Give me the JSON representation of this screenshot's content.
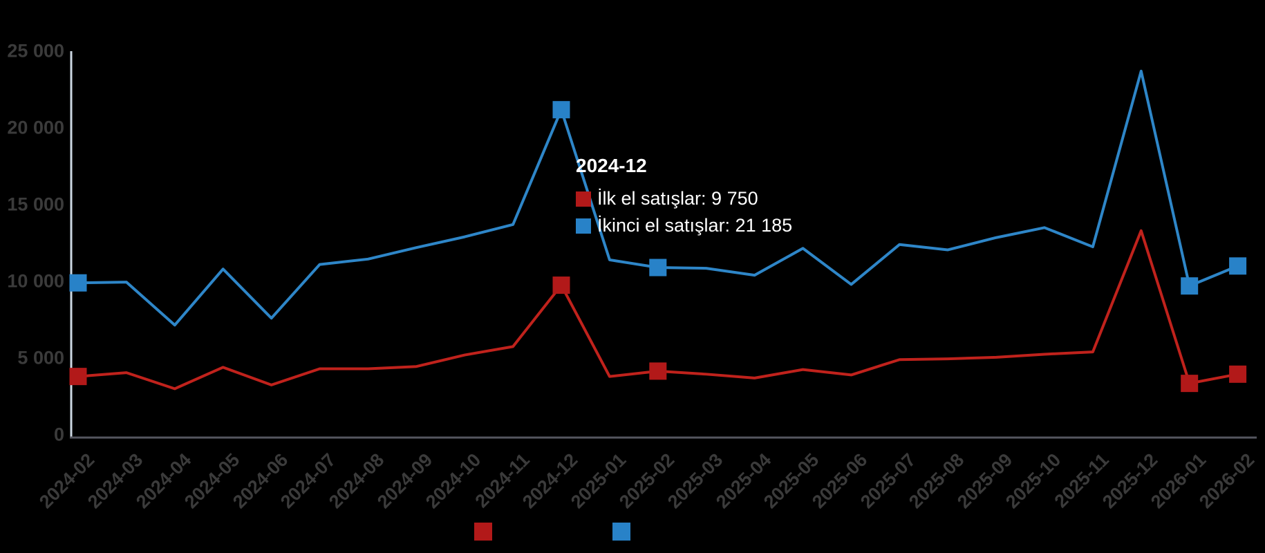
{
  "chart_data": {
    "type": "line",
    "title": "",
    "xlabel": "",
    "ylabel": "",
    "background": "#000000",
    "grid": false,
    "legend_position": "bottom",
    "ylim": [
      0,
      25000
    ],
    "y_ticks": [
      "0",
      "5 000",
      "10 000",
      "15 000",
      "20 000",
      "25 000"
    ],
    "categories": [
      "2024-02",
      "2024-03",
      "2024-04",
      "2024-05",
      "2024-06",
      "2024-07",
      "2024-08",
      "2024-09",
      "2024-10",
      "2024-11",
      "2024-12",
      "2025-01",
      "2025-02",
      "2025-03",
      "2025-04",
      "2025-05",
      "2025-06",
      "2025-07",
      "2025-08",
      "2025-09",
      "2025-10",
      "2025-11",
      "2025-12",
      "2026-01",
      "2026-02"
    ],
    "series": [
      {
        "name": "İlk el satışlar",
        "line_color": "#c0221c",
        "marker_color": "#b21919",
        "values": [
          3800,
          4050,
          3000,
          4400,
          3250,
          4300,
          4300,
          4450,
          5200,
          5750,
          9750,
          3800,
          4150,
          3950,
          3700,
          4250,
          3900,
          4900,
          4950,
          5050,
          5250,
          5400,
          13300,
          3350,
          3950
        ],
        "marker_indices": [
          0,
          10,
          12,
          23,
          24
        ]
      },
      {
        "name": "İkinci el satışlar",
        "line_color": "#2e86c8",
        "marker_color": "#2882c8",
        "values": [
          9900,
          9950,
          7150,
          10800,
          7600,
          11100,
          11450,
          12200,
          12900,
          13700,
          21185,
          11400,
          10900,
          10850,
          10400,
          12150,
          9800,
          12400,
          12050,
          12850,
          13500,
          12250,
          23700,
          9700,
          11000
        ],
        "marker_indices": [
          0,
          10,
          12,
          23,
          24
        ]
      }
    ]
  },
  "tooltip": {
    "title": "2024-12",
    "items": [
      {
        "label": "İlk el satışlar",
        "value": "9 750",
        "text": "İlk el satışlar: 9 750",
        "color": "#b21919"
      },
      {
        "label": "İkinci el satışlar",
        "value": "21 185",
        "text": "İkinci el satışlar: 21 185",
        "color": "#2882c8"
      }
    ]
  },
  "legend": {
    "label_color": "#000000",
    "items": [
      {
        "label": "İlk el satışlar",
        "color": "#b21919"
      },
      {
        "label": "İkinci el satışlar",
        "color": "#2882c8"
      }
    ]
  },
  "colors": {
    "background": "#000000",
    "y_axis_line": "#ccd7e2",
    "x_axis_line": "#55565f",
    "tick_label": "#3b3b3b",
    "tooltip_text": "#ffffff"
  }
}
